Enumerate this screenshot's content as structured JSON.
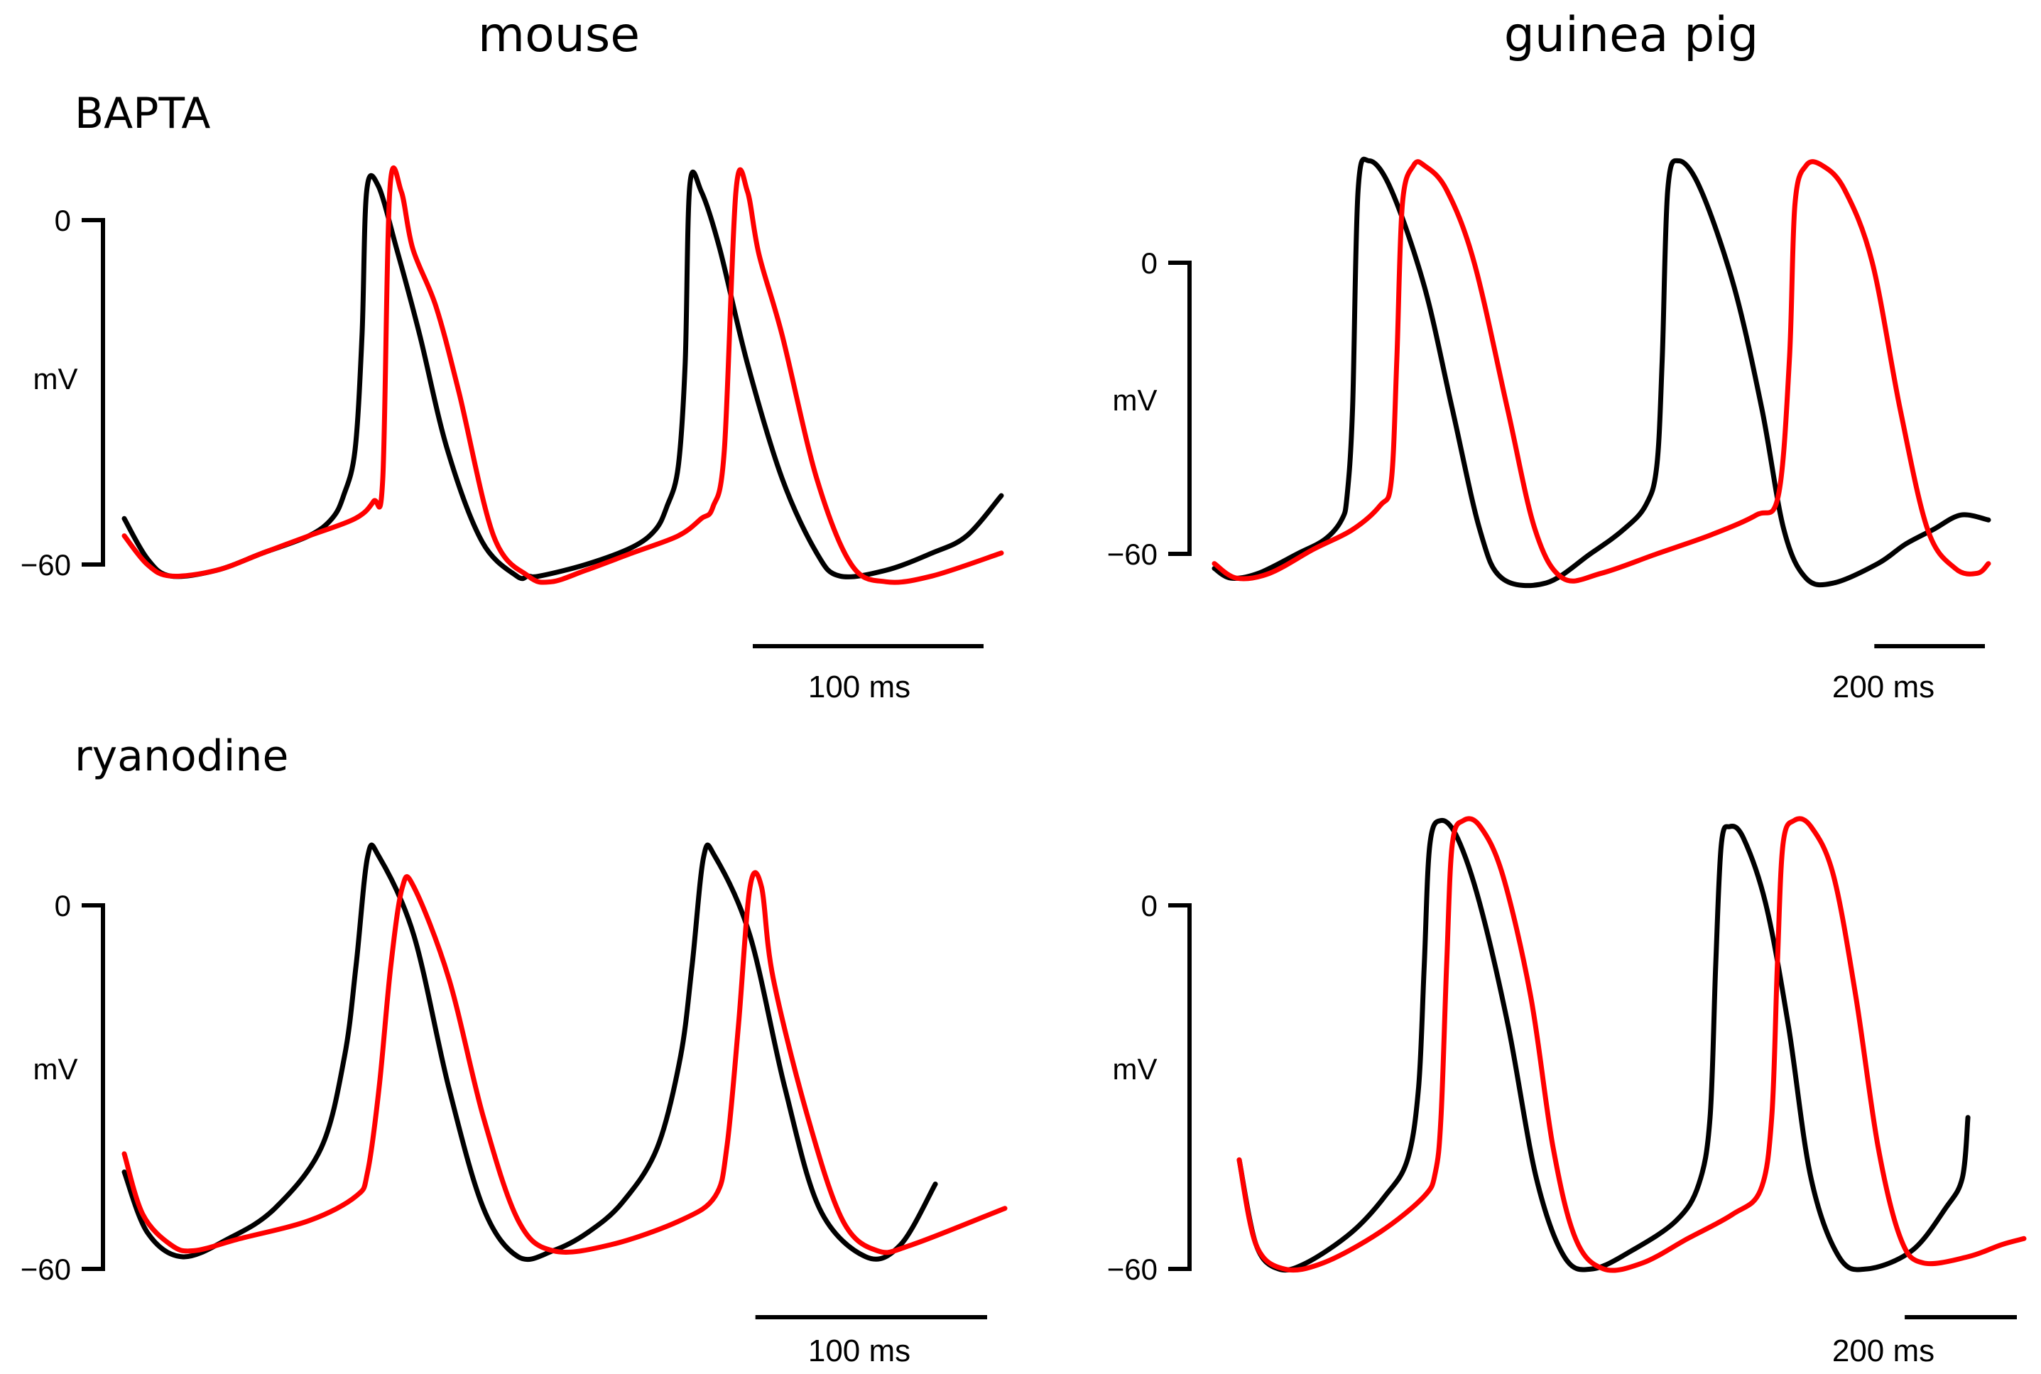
{
  "colors": {
    "control": "#000000",
    "treated": "#ff0000"
  },
  "column_titles": [
    "mouse",
    "guinea pig"
  ],
  "row_titles": [
    "BAPTA",
    "ryanodine"
  ],
  "chart_data": [
    {
      "type": "line",
      "id": "mouse-bapta",
      "species": "mouse",
      "treatment": "BAPTA",
      "ylabel": "mV",
      "ylim": [
        -60,
        0
      ],
      "ytick_labels": [
        "0",
        "−60"
      ],
      "scale_bar": {
        "value": 100,
        "label": "100 ms"
      },
      "xmax_ms": 380,
      "series": [
        {
          "name": "control",
          "color": "#000000",
          "t": [
            0,
            10,
            20,
            40,
            60,
            80,
            90,
            95,
            100,
            103,
            105,
            110,
            118,
            128,
            140,
            155,
            170,
            175,
            180,
            200,
            220,
            230,
            235,
            240,
            243,
            245,
            250,
            258,
            270,
            285,
            300,
            310,
            330,
            350,
            365,
            380
          ],
          "v": [
            -52,
            -59,
            -62,
            -61,
            -58,
            -55,
            -52,
            -48,
            -40,
            -20,
            5,
            6,
            -5,
            -20,
            -40,
            -56,
            -62,
            -62,
            -62,
            -60,
            -57,
            -54,
            -50,
            -43,
            -25,
            6,
            5,
            -5,
            -25,
            -45,
            -58,
            -62,
            -61,
            -58,
            -55,
            -48
          ]
        },
        {
          "name": "treated",
          "color": "#ff0000",
          "t": [
            0,
            10,
            20,
            40,
            60,
            80,
            100,
            108,
            112,
            115,
            120,
            125,
            135,
            145,
            160,
            175,
            185,
            200,
            220,
            240,
            250,
            255,
            260,
            265,
            270,
            275,
            285,
            300,
            315,
            330,
            350,
            380
          ],
          "v": [
            -55,
            -60,
            -62,
            -61,
            -58,
            -55,
            -52,
            -49,
            -45,
            5,
            5,
            -5,
            -15,
            -30,
            -55,
            -62,
            -63,
            -61,
            -58,
            -55,
            -52,
            -50,
            -40,
            5,
            5,
            -6,
            -20,
            -45,
            -60,
            -63,
            -62,
            -58
          ]
        }
      ]
    },
    {
      "type": "line",
      "id": "guinea-pig-bapta",
      "species": "guinea pig",
      "treatment": "BAPTA",
      "ylabel": "mV",
      "ylim": [
        -60,
        0
      ],
      "ytick_labels": [
        "0",
        "−60"
      ],
      "scale_bar": {
        "value": 200,
        "label": "200 ms"
      },
      "xmax_ms": 1400,
      "series": [
        {
          "name": "control",
          "color": "#000000",
          "t": [
            0,
            30,
            80,
            150,
            200,
            230,
            240,
            250,
            260,
            280,
            320,
            380,
            430,
            480,
            520,
            600,
            680,
            740,
            780,
            800,
            810,
            820,
            840,
            880,
            940,
            990,
            1030,
            1070,
            1120,
            1200,
            1250,
            1300,
            1350,
            1400
          ],
          "v": [
            -63,
            -65,
            -64,
            -60,
            -57,
            -53,
            -48,
            -30,
            15,
            21,
            15,
            -5,
            -30,
            -55,
            -65,
            -66,
            -60,
            -55,
            -50,
            -42,
            -20,
            15,
            21,
            15,
            -5,
            -30,
            -55,
            -65,
            -66,
            -62,
            -58,
            -55,
            -52,
            -53
          ]
        },
        {
          "name": "treated",
          "color": "#ff0000",
          "t": [
            0,
            40,
            100,
            180,
            250,
            300,
            320,
            330,
            340,
            360,
            380,
            420,
            470,
            530,
            580,
            630,
            700,
            800,
            900,
            980,
            1020,
            1040,
            1050,
            1070,
            1100,
            1140,
            1190,
            1240,
            1290,
            1340,
            1380,
            1400
          ],
          "v": [
            -62,
            -65,
            -64,
            -59,
            -55,
            -50,
            -45,
            -20,
            12,
            20,
            20,
            15,
            0,
            -30,
            -55,
            -65,
            -64,
            -60,
            -56,
            -52,
            -48,
            -20,
            12,
            20,
            20,
            15,
            0,
            -30,
            -55,
            -63,
            -64,
            -62
          ]
        }
      ]
    },
    {
      "type": "line",
      "id": "mouse-ryanodine",
      "species": "mouse",
      "treatment": "ryanodine",
      "ylabel": "mV",
      "ylim": [
        -60,
        0
      ],
      "ytick_labels": [
        "0",
        "−60"
      ],
      "scale_bar": {
        "value": 100,
        "label": "100 ms"
      },
      "xmax_ms": 380,
      "series": [
        {
          "name": "control",
          "color": "#000000",
          "t": [
            0,
            10,
            25,
            45,
            65,
            85,
            95,
            100,
            105,
            110,
            125,
            140,
            155,
            170,
            185,
            200,
            215,
            230,
            240,
            245,
            250,
            255,
            270,
            285,
            300,
            320,
            335,
            350
          ],
          "v": [
            -44,
            -54,
            -58,
            -55,
            -50,
            -40,
            -25,
            -10,
            8,
            8,
            -5,
            -30,
            -50,
            -58,
            -57,
            -54,
            -49,
            -40,
            -25,
            -10,
            8,
            8,
            -5,
            -30,
            -50,
            -58,
            -56,
            -46
          ]
        },
        {
          "name": "treated",
          "color": "#ff0000",
          "t": [
            0,
            8,
            20,
            30,
            50,
            80,
            100,
            105,
            110,
            115,
            120,
            125,
            140,
            155,
            170,
            185,
            210,
            240,
            255,
            260,
            265,
            270,
            275,
            280,
            295,
            310,
            325,
            340,
            380
          ],
          "v": [
            -41,
            -51,
            -56,
            -57,
            -55,
            -52,
            -48,
            -44,
            -30,
            -10,
            3,
            3,
            -12,
            -35,
            -52,
            -57,
            -56,
            -52,
            -48,
            -40,
            -20,
            3,
            3,
            -12,
            -35,
            -52,
            -57,
            -56,
            -50
          ]
        }
      ]
    },
    {
      "type": "line",
      "id": "guinea-pig-ryanodine",
      "species": "guinea pig",
      "treatment": "ryanodine",
      "ylabel": "mV",
      "ylim": [
        -60,
        0
      ],
      "ytick_labels": [
        "0",
        "−60"
      ],
      "scale_bar": {
        "value": 200,
        "label": "200 ms"
      },
      "xmax_ms": 1400,
      "series": [
        {
          "name": "control",
          "color": "#000000",
          "t": [
            0,
            30,
            70,
            120,
            200,
            260,
            300,
            320,
            330,
            340,
            360,
            390,
            430,
            480,
            530,
            580,
            630,
            700,
            780,
            820,
            840,
            850,
            860,
            875,
            900,
            940,
            980,
            1020,
            1070,
            1120,
            1200,
            1260,
            1290,
            1300
          ],
          "v": [
            -42,
            -56,
            -60,
            -59,
            -54,
            -48,
            -42,
            -30,
            -10,
            10,
            14,
            11,
            0,
            -20,
            -45,
            -58,
            -60,
            -57,
            -52,
            -46,
            -35,
            -10,
            10,
            13,
            11,
            0,
            -20,
            -45,
            -58,
            -60,
            -57,
            -50,
            -45,
            -35
          ]
        },
        {
          "name": "treated",
          "color": "#ff0000",
          "t": [
            0,
            30,
            80,
            150,
            250,
            330,
            350,
            360,
            370,
            380,
            400,
            430,
            470,
            520,
            560,
            600,
            650,
            720,
            800,
            880,
            930,
            950,
            960,
            970,
            990,
            1020,
            1060,
            1100,
            1140,
            1180,
            1220,
            1300,
            1360,
            1400
          ],
          "v": [
            -42,
            -56,
            -60,
            -59,
            -54,
            -48,
            -44,
            -35,
            -10,
            10,
            14,
            13,
            5,
            -15,
            -40,
            -55,
            -60,
            -59,
            -55,
            -51,
            -47,
            -35,
            -10,
            10,
            14,
            13,
            5,
            -15,
            -40,
            -55,
            -59,
            -58,
            -56,
            -55
          ]
        }
      ]
    }
  ]
}
